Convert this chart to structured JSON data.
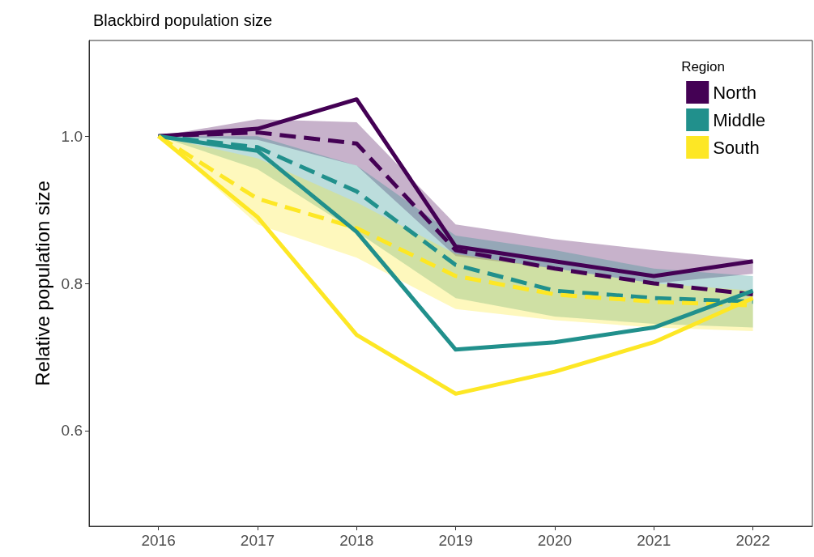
{
  "chart_data": {
    "type": "line",
    "title": "Blackbird population size",
    "ylabel": "Relative population size",
    "legend_title": "Region",
    "x": [
      2016,
      2017,
      2018,
      2019,
      2020,
      2021,
      2022
    ],
    "series": [
      {
        "name": "North",
        "color": "#440154",
        "line_style": "solid",
        "values": [
          1.0,
          1.01,
          1.05,
          0.85,
          0.83,
          0.81,
          0.83
        ]
      },
      {
        "name": "Middle",
        "color": "#21908c",
        "line_style": "solid",
        "values": [
          1.0,
          0.98,
          0.87,
          0.71,
          0.72,
          0.74,
          0.79
        ]
      },
      {
        "name": "South",
        "color": "#fde725",
        "line_style": "solid",
        "values": [
          1.0,
          0.89,
          0.73,
          0.65,
          0.68,
          0.72,
          0.78
        ]
      },
      {
        "color": "#440154",
        "line_style": "dashed",
        "values": [
          1.0,
          1.005,
          0.99,
          0.845,
          0.82,
          0.8,
          0.785
        ],
        "lower": [
          1.0,
          0.995,
          0.96,
          0.837,
          0.82,
          0.8,
          0.813
        ],
        "upper": [
          1.0,
          1.023,
          1.019,
          0.88,
          0.86,
          0.845,
          0.832
        ]
      },
      {
        "color": "#21908c",
        "line_style": "dashed",
        "values": [
          1.0,
          0.985,
          0.925,
          0.825,
          0.79,
          0.78,
          0.775
        ],
        "lower": [
          1.0,
          0.955,
          0.87,
          0.78,
          0.755,
          0.745,
          0.74
        ],
        "upper": [
          1.0,
          1.0,
          0.96,
          0.865,
          0.845,
          0.82,
          0.81
        ]
      },
      {
        "color": "#fde725",
        "line_style": "dashed",
        "values": [
          1.0,
          0.915,
          0.875,
          0.81,
          0.785,
          0.775,
          0.77
        ],
        "lower": [
          1.0,
          0.88,
          0.835,
          0.765,
          0.75,
          0.74,
          0.735
        ],
        "upper": [
          1.0,
          0.97,
          0.91,
          0.84,
          0.82,
          0.8,
          0.79
        ]
      }
    ],
    "xlim": [
      2015.3,
      2022.6
    ],
    "xticks": [
      2016,
      2017,
      2018,
      2019,
      2020,
      2021,
      2022
    ],
    "ylim": [
      0.47,
      1.13
    ],
    "yticks": [
      {
        "value": 0.6,
        "label": "0.6"
      },
      {
        "value": 0.8,
        "label": "0.8"
      },
      {
        "value": 1.0,
        "label": "1.0"
      }
    ],
    "grid": false,
    "legend": "top right",
    "marker": "none"
  }
}
